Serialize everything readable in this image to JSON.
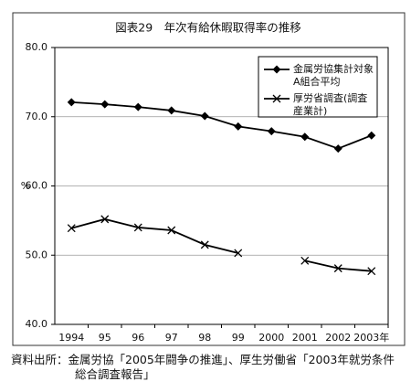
{
  "chart_data": {
    "type": "line",
    "title": "図表29　年次有給休暇取得率の推移",
    "ylabel": "%",
    "categories": [
      "1994",
      "95",
      "96",
      "97",
      "98",
      "99",
      "2000",
      "2001",
      "2002",
      "2003年"
    ],
    "series": [
      {
        "name": "金属労協集計対象A組合平均",
        "color": "#000000",
        "marker": "diamond",
        "values": [
          72.1,
          71.8,
          71.4,
          70.9,
          70.1,
          68.6,
          67.9,
          67.1,
          65.4,
          67.3
        ]
      },
      {
        "name": "厚労省調査(調査産業計)",
        "color": "#000000",
        "marker": "x",
        "values": [
          53.9,
          55.2,
          54.0,
          53.6,
          51.5,
          50.3,
          null,
          49.2,
          48.1,
          47.7
        ]
      }
    ],
    "ylim": [
      40,
      80
    ],
    "yticks": [
      {
        "value": 40,
        "label": "40.0"
      },
      {
        "value": 50,
        "label": "50.0"
      },
      {
        "value": 60,
        "label": "60.0"
      },
      {
        "value": 70,
        "label": "70.0"
      },
      {
        "value": 80,
        "label": "80.0"
      }
    ],
    "grid": true,
    "legend": "upper right",
    "note": "資料出所：金属労協「2005年闘争の推進」、厚生労働省「2003年就労条件総合調査報告」"
  }
}
